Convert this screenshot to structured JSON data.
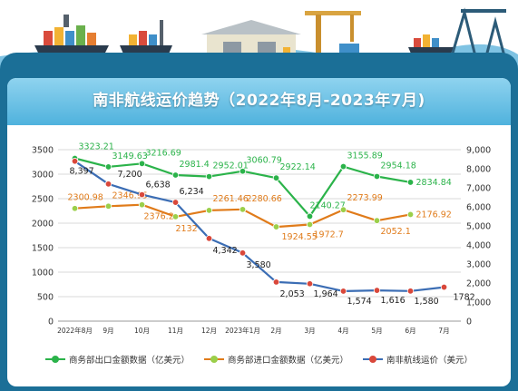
{
  "chart_data": {
    "type": "line",
    "title": "南非航线运价趋势（2022年8月-2023年7月)",
    "categories": [
      "2022年8月",
      "9月",
      "10月",
      "11月",
      "12月",
      "2023年1月",
      "2月",
      "3月",
      "4月",
      "5月",
      "6月",
      "7月"
    ],
    "y_left": {
      "range": [
        0,
        3500
      ],
      "ticks": [
        "0",
        "500",
        "1000",
        "1500",
        "2000",
        "2500",
        "3000",
        "3500"
      ]
    },
    "y_right": {
      "range": [
        0,
        9000
      ],
      "ticks": [
        "0",
        "1,000",
        "2,000",
        "3,000",
        "4,000",
        "5,000",
        "6,000",
        "7,000",
        "8,000",
        "9,000"
      ]
    },
    "grid": true,
    "legend_position": "bottom",
    "series": [
      {
        "name": "商务部出口金额数据（亿美元）",
        "axis": "left",
        "color": "#2bb34a",
        "values": [
          3323.21,
          3149.63,
          3216.69,
          2981.4,
          2952.01,
          3060.79,
          2922.14,
          2140.27,
          3155.89,
          2954.18,
          2834.84,
          null
        ],
        "labels": [
          "3323.21",
          "3149.63",
          "3216.69",
          "2981.4",
          "2952.01",
          "3060.79",
          "2922.14",
          "2140.27",
          "3155.89",
          "2954.18",
          "2834.84",
          ""
        ]
      },
      {
        "name": "商务部进口金额数据（亿美元）",
        "axis": "left",
        "color": "#e07b1a",
        "values": [
          2300.98,
          2346.95,
          2376.2,
          2132,
          2261.46,
          2280.66,
          1924.55,
          1972.7,
          2273.99,
          2052.1,
          2176.92,
          null
        ],
        "labels": [
          "2300.98",
          "2346.95",
          "2376.2",
          "2132",
          "2261.46",
          "2280.66",
          "1924.55",
          "1972.7",
          "2273.99",
          "2052.1",
          "2176.92",
          ""
        ]
      },
      {
        "name": "南非航线运价（美元）",
        "axis": "right",
        "color": "#3b6db4",
        "values": [
          8397,
          7200,
          6638,
          6234,
          4342,
          3580,
          2053,
          1964,
          1574,
          1616,
          1580,
          1782
        ],
        "labels": [
          "8,397",
          "7,200",
          "6,638",
          "6,234",
          "4,342",
          "3,580",
          "2,053",
          "1,964",
          "1,574",
          "1,616",
          "1,580",
          "1782"
        ]
      }
    ]
  },
  "colors": {
    "frame": "#1b6f97",
    "title_bar": "#58b7e0",
    "grid": "#d9d9d9"
  },
  "icons": [
    "container-ship-icon",
    "cargo-ship-icon",
    "warehouse-icon",
    "crane-icon",
    "port-ship-icon"
  ]
}
